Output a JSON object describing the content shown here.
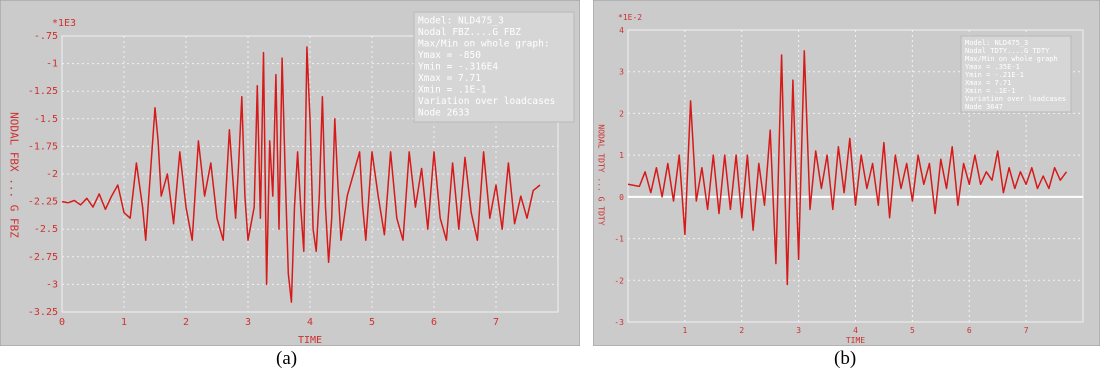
{
  "colors": {
    "panel_bg": "#cbcbcb",
    "grid": "#f2f2f2",
    "text": "#cf3030",
    "line": "#d61a1a",
    "info_bg": "#d6d6d6",
    "info_text": "#ffffff",
    "zero_line": "#ffffff"
  },
  "captions": [
    "(a)",
    "(b)"
  ],
  "chart_data": [
    {
      "type": "line",
      "scale_label": "*1E3",
      "xlabel": "TIME",
      "ylabel": "NODAL FBX ... G FBZ",
      "xlim": [
        0,
        8
      ],
      "ylim": [
        -3.25,
        -0.75
      ],
      "xticks": [
        0,
        1,
        2,
        3,
        4,
        5,
        6,
        7
      ],
      "xtick_labels": [
        "0",
        "1",
        "2",
        "3",
        "4",
        "5",
        "6",
        "7"
      ],
      "yticks": [
        -0.75,
        -1,
        -1.25,
        -1.5,
        -1.75,
        -2,
        -2.25,
        -2.5,
        -2.75,
        -3,
        -3.25
      ],
      "ytick_labels": [
        "-.75",
        "-1",
        "-1.25",
        "-1.5",
        "-1.75",
        "-2",
        "-2.25",
        "-2.5",
        "-2.75",
        "-3",
        "-3.25"
      ],
      "zero_line": null,
      "info_lines": [
        "Model: NLD475_3",
        "Nodal FBZ....G FBZ",
        "Max/Min on whole graph:",
        "Ymax = -850",
        "Ymin = -.316E4",
        "Xmax = 7.71",
        "Xmin = .1E-1",
        "Variation over loadcases",
        "Node 2633"
      ],
      "series": [
        {
          "x": [
            0.0,
            0.1,
            0.2,
            0.3,
            0.4,
            0.5,
            0.6,
            0.7,
            0.8,
            0.9,
            1.0,
            1.1,
            1.2,
            1.3,
            1.35,
            1.4,
            1.5,
            1.55,
            1.6,
            1.7,
            1.8,
            1.9,
            2.0,
            2.1,
            2.2,
            2.3,
            2.4,
            2.5,
            2.6,
            2.7,
            2.8,
            2.85,
            2.9,
            2.95,
            3.0,
            3.1,
            3.15,
            3.2,
            3.25,
            3.3,
            3.35,
            3.4,
            3.45,
            3.5,
            3.55,
            3.6,
            3.65,
            3.7,
            3.75,
            3.8,
            3.85,
            3.9,
            3.95,
            4.0,
            4.05,
            4.1,
            4.15,
            4.2,
            4.25,
            4.3,
            4.35,
            4.4,
            4.45,
            4.5,
            4.6,
            4.7,
            4.8,
            4.85,
            4.9,
            5.0,
            5.1,
            5.2,
            5.3,
            5.4,
            5.5,
            5.6,
            5.7,
            5.8,
            5.9,
            6.0,
            6.1,
            6.2,
            6.3,
            6.4,
            6.5,
            6.6,
            6.7,
            6.8,
            6.9,
            7.0,
            7.1,
            7.2,
            7.3,
            7.4,
            7.5,
            7.6,
            7.71
          ],
          "y": [
            -2.25,
            -2.26,
            -2.24,
            -2.28,
            -2.22,
            -2.3,
            -2.18,
            -2.32,
            -2.2,
            -2.1,
            -2.35,
            -2.4,
            -1.9,
            -2.3,
            -2.6,
            -2.2,
            -1.4,
            -1.7,
            -2.2,
            -2.0,
            -2.45,
            -1.8,
            -2.3,
            -2.6,
            -1.7,
            -2.2,
            -1.9,
            -2.4,
            -2.6,
            -1.6,
            -2.4,
            -1.9,
            -1.3,
            -2.2,
            -2.6,
            -2.3,
            -1.2,
            -2.4,
            -0.9,
            -3.0,
            -1.7,
            -2.2,
            -1.1,
            -2.5,
            -0.95,
            -2.0,
            -2.9,
            -3.16,
            -2.3,
            -1.8,
            -2.3,
            -2.7,
            -0.85,
            -1.5,
            -2.5,
            -2.7,
            -2.2,
            -1.3,
            -2.3,
            -2.8,
            -2.4,
            -1.5,
            -2.1,
            -2.6,
            -2.2,
            -2.0,
            -1.8,
            -2.3,
            -2.6,
            -1.8,
            -2.2,
            -2.55,
            -1.8,
            -2.4,
            -2.6,
            -1.8,
            -2.3,
            -1.95,
            -2.5,
            -1.8,
            -2.4,
            -2.6,
            -1.9,
            -2.5,
            -1.85,
            -2.35,
            -2.6,
            -1.8,
            -2.4,
            -2.1,
            -2.5,
            -1.9,
            -2.45,
            -2.2,
            -2.4,
            -2.15,
            -2.1
          ]
        }
      ]
    },
    {
      "type": "line",
      "scale_label": "*1E-2",
      "xlabel": "TIME",
      "ylabel": "NODAL TDTY ... G TDTY",
      "xlim": [
        0,
        8
      ],
      "ylim": [
        -3,
        4
      ],
      "xticks": [
        1,
        2,
        3,
        4,
        5,
        6,
        7
      ],
      "xtick_labels": [
        "1",
        "2",
        "3",
        "4",
        "5",
        "6",
        "7"
      ],
      "yticks": [
        4,
        3,
        2,
        1,
        0,
        -1,
        -2,
        -3
      ],
      "ytick_labels": [
        "4",
        "3",
        "2",
        "1",
        "0",
        "-1",
        "-2",
        "-3"
      ],
      "zero_line": 0,
      "info_lines": [
        "Model: NLD475_3",
        "Nodal TDTY....G TDTY",
        "Max/Min on whole graph",
        "Ymax = .35E-1",
        "Ymin = -.21E-1",
        "Xmax = 7.71",
        "Xmin = .1E-1",
        "Variation over loadcases",
        "Node 3647"
      ],
      "series": [
        {
          "x": [
            0.0,
            0.2,
            0.3,
            0.4,
            0.5,
            0.6,
            0.7,
            0.8,
            0.9,
            1.0,
            1.1,
            1.2,
            1.3,
            1.4,
            1.5,
            1.6,
            1.7,
            1.8,
            1.9,
            2.0,
            2.1,
            2.2,
            2.3,
            2.4,
            2.5,
            2.6,
            2.7,
            2.8,
            2.9,
            3.0,
            3.1,
            3.2,
            3.3,
            3.4,
            3.5,
            3.6,
            3.7,
            3.8,
            3.9,
            4.0,
            4.1,
            4.2,
            4.3,
            4.4,
            4.5,
            4.6,
            4.7,
            4.8,
            4.9,
            5.0,
            5.1,
            5.2,
            5.3,
            5.4,
            5.5,
            5.6,
            5.7,
            5.8,
            5.9,
            6.0,
            6.1,
            6.2,
            6.3,
            6.4,
            6.5,
            6.6,
            6.7,
            6.8,
            6.9,
            7.0,
            7.1,
            7.2,
            7.3,
            7.4,
            7.5,
            7.6,
            7.71
          ],
          "y": [
            0.3,
            0.25,
            0.6,
            0.1,
            0.7,
            0.0,
            0.8,
            -0.1,
            1.0,
            -0.9,
            2.3,
            -0.1,
            0.7,
            -0.3,
            1.0,
            -0.4,
            1.0,
            -0.3,
            1.0,
            -0.5,
            1.0,
            -0.8,
            0.8,
            -0.2,
            1.6,
            -1.6,
            3.4,
            -2.1,
            2.8,
            -1.5,
            3.5,
            -0.3,
            1.1,
            0.2,
            1.0,
            -0.3,
            1.2,
            0.1,
            1.4,
            -0.2,
            1.0,
            0.2,
            0.8,
            -0.2,
            1.3,
            -0.5,
            1.0,
            0.2,
            0.8,
            -0.1,
            1.0,
            0.3,
            0.8,
            -0.4,
            0.9,
            0.2,
            1.2,
            -0.2,
            0.8,
            0.3,
            1.0,
            0.3,
            0.6,
            0.4,
            1.1,
            0.1,
            0.7,
            0.2,
            0.6,
            0.3,
            0.7,
            0.2,
            0.5,
            0.2,
            0.7,
            0.4,
            0.6
          ]
        }
      ]
    }
  ]
}
